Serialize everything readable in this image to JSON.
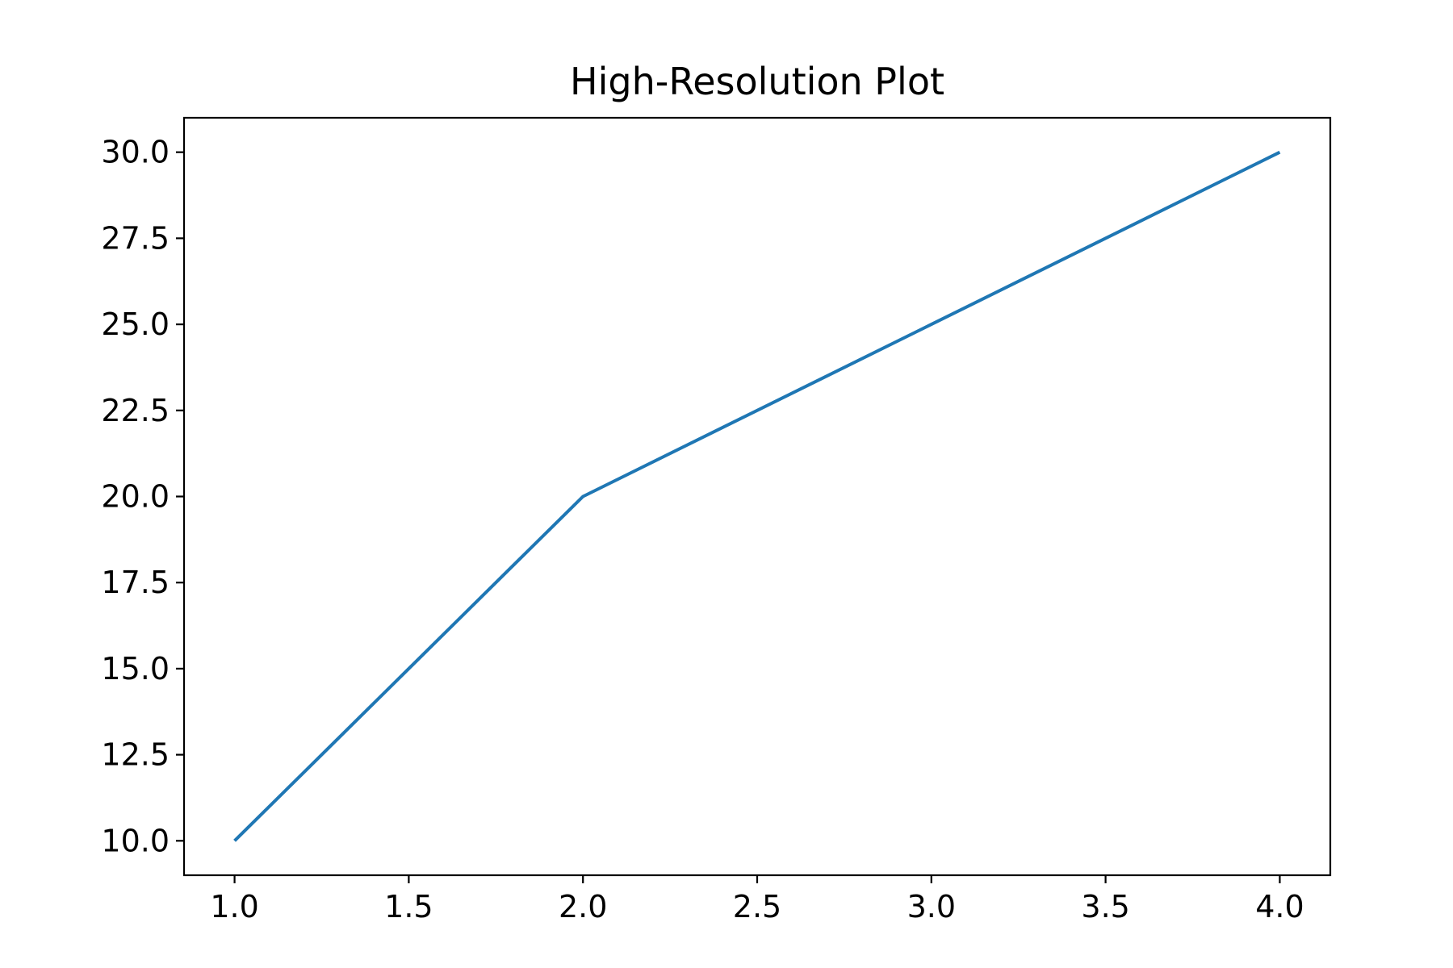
{
  "chart_data": {
    "type": "line",
    "title": "High-Resolution Plot",
    "xlabel": "",
    "ylabel": "",
    "x": [
      1.0,
      2.0,
      3.0,
      4.0
    ],
    "series": [
      {
        "values": [
          10.0,
          20.0,
          25.0,
          30.0
        ],
        "color": "#1f77b4"
      }
    ],
    "xlim": [
      0.855,
      4.145
    ],
    "ylim": [
      9.0,
      31.0
    ],
    "xticks": [
      1.0,
      1.5,
      2.0,
      2.5,
      3.0,
      3.5,
      4.0
    ],
    "xtick_labels": [
      "1.0",
      "1.5",
      "2.0",
      "2.5",
      "3.0",
      "3.5",
      "4.0"
    ],
    "yticks": [
      10.0,
      12.5,
      15.0,
      17.5,
      20.0,
      22.5,
      25.0,
      27.5,
      30.0
    ],
    "ytick_labels": [
      "10.0",
      "12.5",
      "15.0",
      "17.5",
      "20.0",
      "22.5",
      "25.0",
      "27.5",
      "30.0"
    ],
    "grid": false,
    "legend": "none"
  }
}
